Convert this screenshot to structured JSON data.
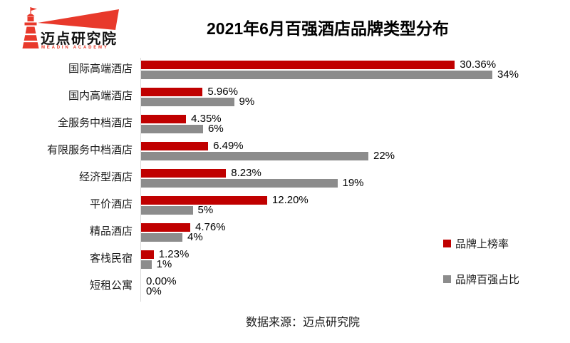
{
  "logo": {
    "name": "迈点研究院",
    "subtitle": "MEADIN ACADEMY"
  },
  "title": "2021年6月百强酒店品牌类型分布",
  "footer": "数据来源：迈点研究院",
  "colors": {
    "bar_red": "#c00000",
    "bar_gray": "#8c8c8c",
    "logo_red": "#e8392b",
    "axis_gray": "#d9d9d9"
  },
  "legend": {
    "items": [
      {
        "id": "brand-listing-rate",
        "label": "品牌上榜率",
        "color": "#c00000"
      },
      {
        "id": "brand-top100-share",
        "label": "品牌百强占比",
        "color": "#8c8c8c"
      }
    ]
  },
  "chart_data": {
    "type": "bar",
    "orientation": "horizontal",
    "title": "2021年6月百强酒店品牌类型分布",
    "categories": [
      "国际高端酒店",
      "国内高端酒店",
      "全服务中档酒店",
      "有限服务中档酒店",
      "经济型酒店",
      "平价酒店",
      "精品酒店",
      "客栈民宿",
      "短租公寓"
    ],
    "series": [
      {
        "id": "brand-listing-rate",
        "name": "品牌上榜率",
        "color": "#c00000",
        "values": [
          30.36,
          5.96,
          4.35,
          6.49,
          8.23,
          12.2,
          4.76,
          1.23,
          0.0
        ],
        "labels": [
          "30.36%",
          "5.96%",
          "4.35%",
          "6.49%",
          "8.23%",
          "12.20%",
          "4.76%",
          "1.23%",
          "0.00%"
        ]
      },
      {
        "id": "brand-top100-share",
        "name": "品牌百强占比",
        "color": "#8c8c8c",
        "values": [
          34,
          9,
          6,
          22,
          19,
          5,
          4,
          1,
          0
        ],
        "labels": [
          "34%",
          "9%",
          "6%",
          "22%",
          "19%",
          "5%",
          "4%",
          "1%",
          "0%"
        ]
      }
    ],
    "xlim": [
      0,
      38
    ],
    "grid": false,
    "legend_position": "right",
    "value_labels": true
  }
}
